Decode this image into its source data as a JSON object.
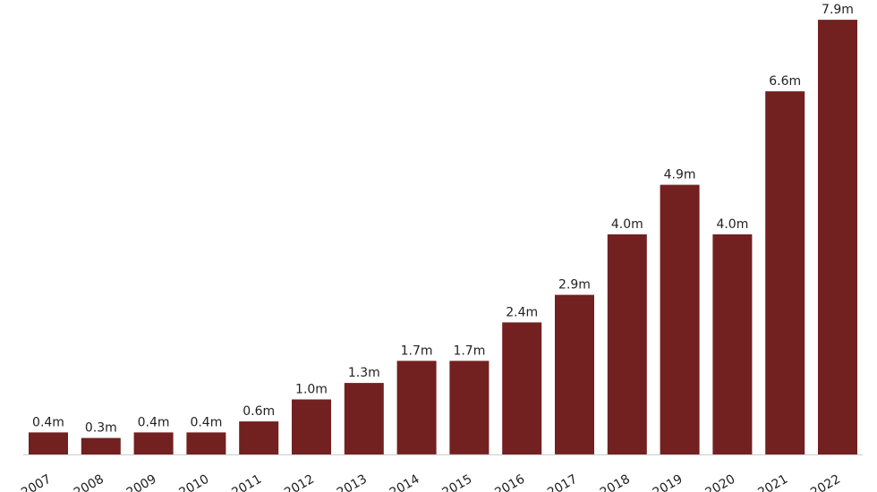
{
  "chart_data": {
    "type": "bar",
    "title": "",
    "xlabel": "",
    "ylabel": "",
    "categories": [
      "2007",
      "2008",
      "2009",
      "2010",
      "2011",
      "2012",
      "2013",
      "2014",
      "2015",
      "2016",
      "2017",
      "2018",
      "2019",
      "2020",
      "2021",
      "2022"
    ],
    "values": [
      0.4,
      0.3,
      0.4,
      0.4,
      0.6,
      1.0,
      1.3,
      1.7,
      1.7,
      2.4,
      2.9,
      4.0,
      4.9,
      4.0,
      6.6,
      7.9
    ],
    "value_labels": [
      "0.4m",
      "0.3m",
      "0.4m",
      "0.4m",
      "0.6m",
      "1.0m",
      "1.3m",
      "1.7m",
      "1.7m",
      "2.4m",
      "2.9m",
      "4.0m",
      "4.9m",
      "4.0m",
      "6.6m",
      "7.9m"
    ],
    "ylim": [
      0,
      8
    ],
    "grid": false,
    "bar_color": "#722020",
    "baseline_color": "#cccccc"
  }
}
